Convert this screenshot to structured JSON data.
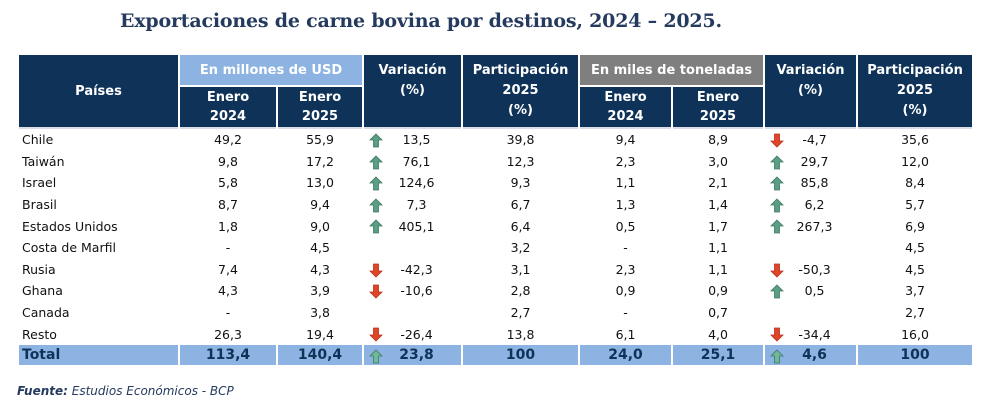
{
  "title": "Exportaciones de carne bovina por destinos, 2024 – 2025.",
  "header": {
    "paises": "Países",
    "usd_group": "En millones de USD",
    "ton_group": "En miles de toneladas",
    "variacion_l1": "Variación",
    "variacion_l2": "(%)",
    "participacion_l1": "Participación",
    "participacion_l2": "2025",
    "participacion_l3": "(%)",
    "enero": "Enero",
    "y2024": "2024",
    "y2025": "2025"
  },
  "rows": [
    {
      "country": "Chile",
      "usd_2024": "49,2",
      "usd_2025": "55,9",
      "usd_var": "13,5",
      "usd_dir": "up",
      "usd_part": "39,8",
      "ton_2024": "9,4",
      "ton_2025": "8,9",
      "ton_var": "-4,7",
      "ton_dir": "down",
      "ton_part": "35,6"
    },
    {
      "country": "Taiwán",
      "usd_2024": "9,8",
      "usd_2025": "17,2",
      "usd_var": "76,1",
      "usd_dir": "up",
      "usd_part": "12,3",
      "ton_2024": "2,3",
      "ton_2025": "3,0",
      "ton_var": "29,7",
      "ton_dir": "up",
      "ton_part": "12,0"
    },
    {
      "country": "Israel",
      "usd_2024": "5,8",
      "usd_2025": "13,0",
      "usd_var": "124,6",
      "usd_dir": "up",
      "usd_part": "9,3",
      "ton_2024": "1,1",
      "ton_2025": "2,1",
      "ton_var": "85,8",
      "ton_dir": "up",
      "ton_part": "8,4"
    },
    {
      "country": "Brasil",
      "usd_2024": "8,7",
      "usd_2025": "9,4",
      "usd_var": "7,3",
      "usd_dir": "up",
      "usd_part": "6,7",
      "ton_2024": "1,3",
      "ton_2025": "1,4",
      "ton_var": "6,2",
      "ton_dir": "up",
      "ton_part": "5,7"
    },
    {
      "country": "Estados Unidos",
      "usd_2024": "1,8",
      "usd_2025": "9,0",
      "usd_var": "405,1",
      "usd_dir": "up",
      "usd_part": "6,4",
      "ton_2024": "0,5",
      "ton_2025": "1,7",
      "ton_var": "267,3",
      "ton_dir": "up",
      "ton_part": "6,9"
    },
    {
      "country": "Costa de Marfil",
      "usd_2024": "-",
      "usd_2025": "4,5",
      "usd_var": "",
      "usd_dir": "",
      "usd_part": "3,2",
      "ton_2024": "-",
      "ton_2025": "1,1",
      "ton_var": "",
      "ton_dir": "",
      "ton_part": "4,5"
    },
    {
      "country": "Rusia",
      "usd_2024": "7,4",
      "usd_2025": "4,3",
      "usd_var": "-42,3",
      "usd_dir": "down",
      "usd_part": "3,1",
      "ton_2024": "2,3",
      "ton_2025": "1,1",
      "ton_var": "-50,3",
      "ton_dir": "down",
      "ton_part": "4,5"
    },
    {
      "country": "Ghana",
      "usd_2024": "4,3",
      "usd_2025": "3,9",
      "usd_var": "-10,6",
      "usd_dir": "down",
      "usd_part": "2,8",
      "ton_2024": "0,9",
      "ton_2025": "0,9",
      "ton_var": "0,5",
      "ton_dir": "up",
      "ton_part": "3,7"
    },
    {
      "country": "Canada",
      "usd_2024": "-",
      "usd_2025": "3,8",
      "usd_var": "",
      "usd_dir": "",
      "usd_part": "2,7",
      "ton_2024": "-",
      "ton_2025": "0,7",
      "ton_var": "",
      "ton_dir": "",
      "ton_part": "2,7"
    },
    {
      "country": "Resto",
      "usd_2024": "26,3",
      "usd_2025": "19,4",
      "usd_var": "-26,4",
      "usd_dir": "down",
      "usd_part": "13,8",
      "ton_2024": "6,1",
      "ton_2025": "4,0",
      "ton_var": "-34,4",
      "ton_dir": "down",
      "ton_part": "16,0"
    }
  ],
  "total": {
    "country": "Total",
    "usd_2024": "113,4",
    "usd_2025": "140,4",
    "usd_var": "23,8",
    "usd_dir": "up",
    "usd_part": "100",
    "ton_2024": "24,0",
    "ton_2025": "25,1",
    "ton_var": "4,6",
    "ton_dir": "up",
    "ton_part": "100"
  },
  "source_label": "Fuente:",
  "source_text": " Estudios Económicos - BCP",
  "colors": {
    "header_navy": "#0f3358",
    "usd_group": "#8db3e2",
    "ton_group": "#7f7f7f",
    "up_arrow": "#5a9e84",
    "down_arrow": "#e0452a",
    "total_row": "#8db3e2"
  }
}
